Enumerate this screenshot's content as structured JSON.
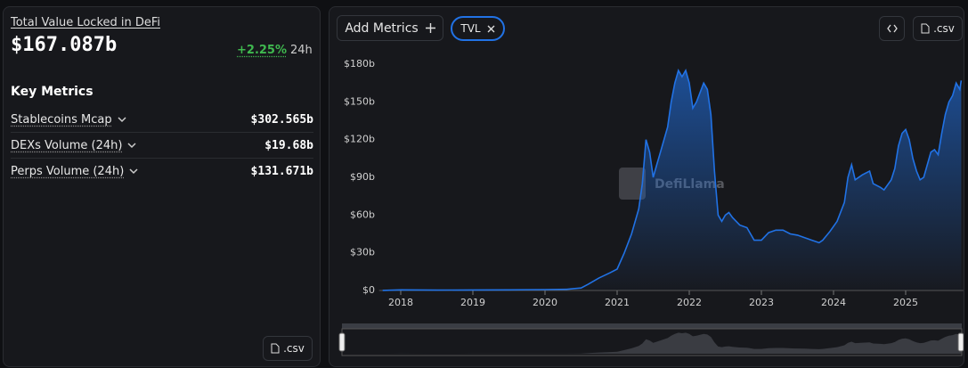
{
  "panel": {
    "title": "Total Value Locked in DeFi",
    "value": "$167.087b",
    "change": "+2.25%",
    "period": "24h",
    "section_title": "Key Metrics",
    "metrics": [
      {
        "label": "Stablecoins Mcap",
        "value": "$302.565b"
      },
      {
        "label": "DEXs Volume (24h)",
        "value": "$19.68b"
      },
      {
        "label": "Perps Volume (24h)",
        "value": "$131.671b"
      }
    ],
    "csv_button": ".csv"
  },
  "toolbar": {
    "add_metrics": "Add Metrics",
    "csv_button": ".csv"
  },
  "chart_data": {
    "type": "line",
    "watermark": "DefiLlama",
    "x": [
      2017.75,
      2018.0,
      2018.5,
      2019.0,
      2019.5,
      2020.0,
      2020.3,
      2020.5,
      2020.6,
      2020.75,
      2020.9,
      2021.0,
      2021.1,
      2021.2,
      2021.3,
      2021.35,
      2021.4,
      2021.45,
      2021.5,
      2021.55,
      2021.6,
      2021.7,
      2021.75,
      2021.8,
      2021.85,
      2021.9,
      2021.95,
      2022.0,
      2022.05,
      2022.1,
      2022.2,
      2022.25,
      2022.3,
      2022.35,
      2022.4,
      2022.45,
      2022.5,
      2022.55,
      2022.6,
      2022.7,
      2022.8,
      2022.85,
      2022.9,
      2023.0,
      2023.1,
      2023.2,
      2023.3,
      2023.4,
      2023.5,
      2023.6,
      2023.7,
      2023.8,
      2023.85,
      2023.95,
      2024.05,
      2024.15,
      2024.2,
      2024.25,
      2024.3,
      2024.4,
      2024.5,
      2024.55,
      2024.65,
      2024.7,
      2024.8,
      2024.85,
      2024.9,
      2024.95,
      2025.0,
      2025.05,
      2025.1,
      2025.15,
      2025.2,
      2025.25,
      2025.3,
      2025.35,
      2025.4,
      2025.45,
      2025.5,
      2025.55,
      2025.6,
      2025.65,
      2025.7,
      2025.75,
      2025.77
    ],
    "series": [
      {
        "name": "TVL",
        "color": "#2172e5",
        "values": [
          0.1,
          0.5,
          0.3,
          0.4,
          0.5,
          0.7,
          0.9,
          2,
          5,
          10,
          14,
          17,
          30,
          45,
          65,
          85,
          120,
          110,
          90,
          100,
          110,
          130,
          150,
          165,
          175,
          170,
          175,
          165,
          145,
          150,
          165,
          160,
          140,
          95,
          60,
          55,
          60,
          62,
          58,
          52,
          50,
          45,
          40,
          40,
          46,
          48,
          48,
          45,
          44,
          42,
          40,
          38,
          40,
          47,
          55,
          70,
          90,
          100,
          88,
          92,
          95,
          85,
          82,
          80,
          88,
          97,
          115,
          125,
          128,
          120,
          105,
          95,
          88,
          90,
          100,
          110,
          112,
          108,
          125,
          140,
          150,
          155,
          165,
          160,
          167
        ]
      }
    ],
    "xlim": [
      2017.7,
      2025.8
    ],
    "xticks": [
      2018,
      2019,
      2020,
      2021,
      2022,
      2023,
      2024,
      2025
    ],
    "ylim": [
      0,
      185
    ],
    "yticks": [
      {
        "value": 0,
        "label": "$0"
      },
      {
        "value": 30,
        "label": "$30b"
      },
      {
        "value": 60,
        "label": "$60b"
      },
      {
        "value": 90,
        "label": "$90b"
      },
      {
        "value": 120,
        "label": "$120b"
      },
      {
        "value": 150,
        "label": "$150b"
      },
      {
        "value": 180,
        "label": "$180b"
      }
    ]
  }
}
